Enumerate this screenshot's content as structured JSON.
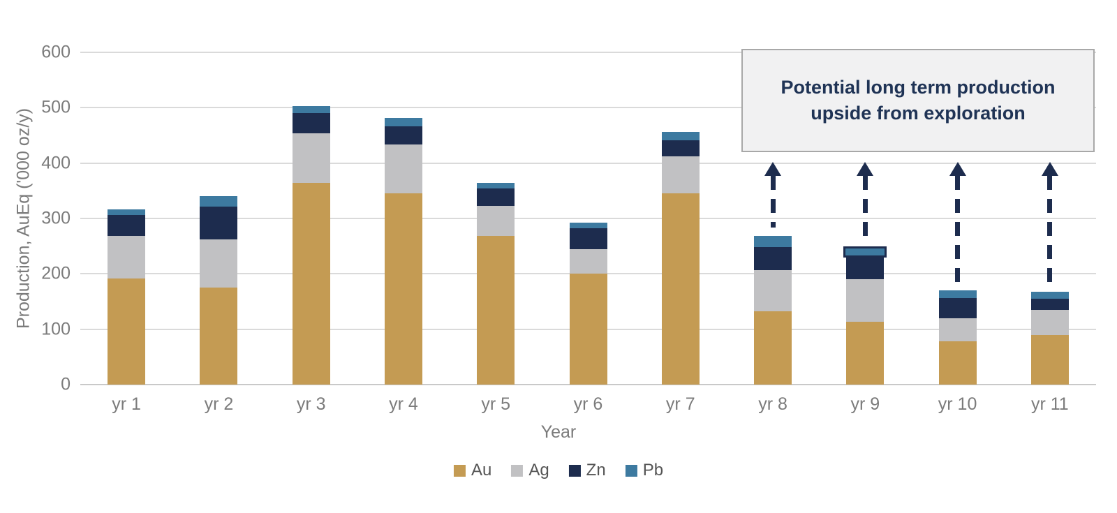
{
  "chart": {
    "colors": {
      "au": "#c49b53",
      "ag": "#c1c1c3",
      "zn": "#1d2c4e",
      "pb": "#3d7aa0",
      "arrow": "#1d2c4e",
      "annotation_text": "#1f3355",
      "annotation_fill": "#f1f1f2",
      "annotation_border": "#a8a8a8",
      "gridline": "#dadada",
      "axis_text": "#7b7b7b"
    }
  },
  "chart_data": {
    "type": "bar",
    "stacked": true,
    "title": "",
    "xlabel": "Year",
    "ylabel": "Production, AuEq ('000 oz/y)",
    "categories": [
      "yr 1",
      "yr 2",
      "yr 3",
      "yr 4",
      "yr 5",
      "yr 6",
      "yr 7",
      "yr 8",
      "yr 9",
      "yr 10",
      "yr 11"
    ],
    "series": [
      {
        "name": "Au",
        "color": "#c49b53",
        "values": [
          192,
          175,
          364,
          346,
          268,
          200,
          345,
          133,
          113,
          78,
          89
        ]
      },
      {
        "name": "Ag",
        "color": "#c1c1c3",
        "values": [
          77,
          87,
          90,
          88,
          55,
          45,
          67,
          74,
          77,
          42,
          46
        ]
      },
      {
        "name": "Zn",
        "color": "#1d2c4e",
        "values": [
          37,
          59,
          36,
          33,
          31,
          37,
          29,
          41,
          39,
          36,
          20
        ]
      },
      {
        "name": "Pb",
        "color": "#3d7aa0",
        "values": [
          11,
          19,
          13,
          14,
          10,
          11,
          15,
          21,
          20,
          14,
          13
        ]
      }
    ],
    "totals": [
      317,
      340,
      503,
      481,
      364,
      293,
      456,
      269,
      249,
      170,
      168
    ],
    "ylim": [
      0,
      600
    ],
    "yticks": [
      0,
      100,
      200,
      300,
      400,
      500,
      600
    ],
    "grid": true,
    "legend_position": "bottom",
    "legend_labels": [
      "Au",
      "Ag",
      "Zn",
      "Pb"
    ],
    "annotation": {
      "line1": "Potential long term production",
      "line2": "upside from exploration"
    },
    "upside_arrows": [
      "yr 8",
      "yr 9",
      "yr 10",
      "yr 11"
    ],
    "highlight": {
      "category": "yr 9",
      "series": "Pb",
      "style": "dark-outline"
    }
  }
}
